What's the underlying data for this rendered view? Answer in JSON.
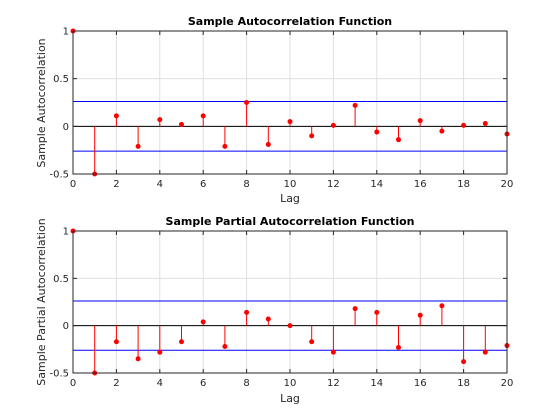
{
  "chart_data": [
    {
      "type": "stem",
      "title": "Sample Autocorrelation Function",
      "xlabel": "Lag",
      "ylabel": "Sample Autocorrelation",
      "xlim": [
        0,
        20
      ],
      "ylim": [
        -0.5,
        1
      ],
      "xticks": [
        "0",
        "2",
        "4",
        "6",
        "8",
        "10",
        "12",
        "14",
        "16",
        "18",
        "20"
      ],
      "yticks": [
        "-0.5",
        "0",
        "0.5",
        "1"
      ],
      "grid": true,
      "x": [
        0,
        1,
        2,
        3,
        4,
        5,
        6,
        7,
        8,
        9,
        10,
        11,
        12,
        13,
        14,
        15,
        16,
        17,
        18,
        19,
        20
      ],
      "values": [
        1.0,
        -0.5,
        0.11,
        -0.21,
        0.07,
        0.02,
        0.11,
        -0.21,
        0.25,
        -0.19,
        0.05,
        -0.1,
        0.01,
        0.22,
        -0.06,
        -0.14,
        0.06,
        -0.05,
        0.01,
        0.03,
        -0.08
      ],
      "bounds": [
        0.26,
        -0.26
      ],
      "colors": {
        "stem": "#ff0000",
        "bounds": "#0000ff",
        "zero": "#000000"
      }
    },
    {
      "type": "stem",
      "title": "Sample Partial Autocorrelation Function",
      "xlabel": "Lag",
      "ylabel": "Sample Partial Autocorrelation",
      "xlim": [
        0,
        20
      ],
      "ylim": [
        -0.5,
        1
      ],
      "xticks": [
        "0",
        "2",
        "4",
        "6",
        "8",
        "10",
        "12",
        "14",
        "16",
        "18",
        "20"
      ],
      "yticks": [
        "-0.5",
        "0",
        "0.5",
        "1"
      ],
      "grid": true,
      "x": [
        0,
        1,
        2,
        3,
        4,
        5,
        6,
        7,
        8,
        9,
        10,
        11,
        12,
        13,
        14,
        15,
        16,
        17,
        18,
        19,
        20
      ],
      "values": [
        1.0,
        -0.5,
        -0.17,
        -0.35,
        -0.28,
        -0.17,
        0.04,
        -0.22,
        0.14,
        0.07,
        0.0,
        -0.17,
        -0.28,
        0.18,
        0.14,
        -0.23,
        0.11,
        0.21,
        -0.38,
        -0.28,
        -0.21
      ],
      "bounds": [
        0.26,
        -0.26
      ],
      "colors": {
        "stem": "#ff0000",
        "bounds": "#0000ff",
        "zero": "#000000"
      }
    }
  ]
}
